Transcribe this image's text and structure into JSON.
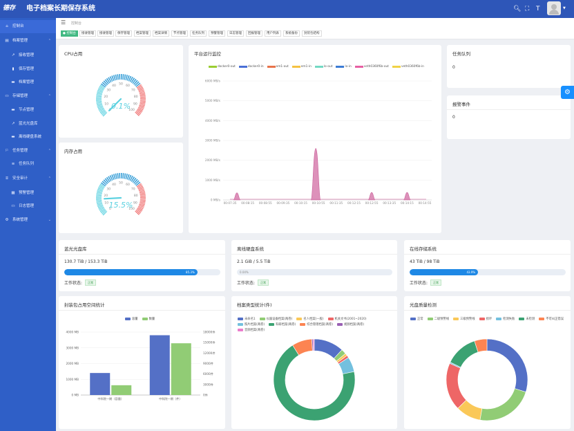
{
  "header": {
    "logo_text": "德存",
    "title": "电子档案长期保存系统"
  },
  "sidebar": {
    "items": [
      {
        "label": "控制台",
        "icon": "home-icon",
        "level": 0,
        "active": true
      },
      {
        "label": "档案管理",
        "icon": "archive-icon",
        "level": 0,
        "arrow": "⌃"
      },
      {
        "label": "接收管理",
        "icon": "external-link-icon",
        "level": 1
      },
      {
        "label": "保存管理",
        "icon": "bar-chart-icon",
        "level": 1
      },
      {
        "label": "档案管理",
        "icon": "document-icon",
        "level": 1
      },
      {
        "label": "存储管理",
        "icon": "storage-icon",
        "level": 0,
        "arrow": "⌃"
      },
      {
        "label": "节点管理",
        "icon": "document-icon",
        "level": 1
      },
      {
        "label": "蓝光光盘库",
        "icon": "external-link-icon",
        "level": 1
      },
      {
        "label": "离线硬盘系统",
        "icon": "document-icon",
        "level": 1
      },
      {
        "label": "任务管理",
        "icon": "task-icon",
        "level": 0,
        "arrow": "⌃"
      },
      {
        "label": "任务队列",
        "icon": "list-icon",
        "level": 1
      },
      {
        "label": "安全审计",
        "icon": "lock-icon",
        "level": 0,
        "arrow": "⌃"
      },
      {
        "label": "预警管理",
        "icon": "grid-icon",
        "level": 1
      },
      {
        "label": "日志管理",
        "icon": "message-icon",
        "level": 1
      },
      {
        "label": "系统管理",
        "icon": "settings-icon",
        "level": 0,
        "arrow": "⌄"
      }
    ]
  },
  "breadcrumb": "控制台",
  "tabs": [
    "● 控制台",
    "接收管理",
    "接收管理",
    "保存管理",
    "档案管理",
    "档案详情",
    "节点管理",
    "任务队列",
    "预警管理",
    "日志管理",
    "回报管理",
    "用户列表",
    "系统备份",
    "封装包结构"
  ],
  "cpu": {
    "title": "CPU占用",
    "value": "0.1%",
    "percent": 0.1
  },
  "memory": {
    "title": "内存占用",
    "value": "15.5%",
    "percent": 15.5
  },
  "gauge_ticks": [
    "0",
    "10",
    "20",
    "30",
    "40",
    "50",
    "60",
    "70",
    "80",
    "90",
    "100"
  ],
  "monitor": {
    "title": "平台运行监控",
    "legend": [
      {
        "name": "docker0-out",
        "color": "#9acd32"
      },
      {
        "name": "docker0-in",
        "color": "#4a6fd6"
      },
      {
        "name": "em1-out",
        "color": "#e8734a"
      },
      {
        "name": "em1-in",
        "color": "#f5c242"
      },
      {
        "name": "lo-out",
        "color": "#73d9c3"
      },
      {
        "name": "lo-in",
        "color": "#3b7bd4"
      },
      {
        "name": "veth0360f6b-out",
        "color": "#e75fa3"
      },
      {
        "name": "veth0360f6b-in",
        "color": "#f0d246"
      }
    ]
  },
  "task_queue": {
    "title": "任务队列",
    "value": "0"
  },
  "alarm": {
    "title": "报警事件",
    "value": "0"
  },
  "storage": [
    {
      "title": "蓝光光盘库",
      "usage": "130.7 TiB / 153.3 TiB",
      "percent": 85.3,
      "label": "85.3%",
      "status_label": "工作状态:",
      "status": "正常"
    },
    {
      "title": "离线硬盘系统",
      "usage": "2.1 GiB / 5.5 TiB",
      "percent": 0.04,
      "label": "0.04%",
      "status_label": "工作状态:",
      "status": "正常"
    },
    {
      "title": "在线存储系统",
      "usage": "43 TiB / 98 TiB",
      "percent": 43.9,
      "label": "43.9%",
      "status_label": "工作状态:",
      "status": "正常"
    }
  ],
  "package_chart": {
    "title": "封装包占用空间统计"
  },
  "category_chart": {
    "title": "档案类型统计(件)"
  },
  "quality_chart": {
    "title": "光盘质量检测"
  },
  "chart_data": [
    {
      "type": "line",
      "series": [
        "docker0-out",
        "docker0-in",
        "em1-out",
        "em1-in",
        "lo-out",
        "lo-in",
        "veth0360f6b-out",
        "veth0360f6b-in"
      ],
      "x": [
        "00:07:35",
        "00:08:15",
        "00:08:55",
        "00:09:35",
        "00:10:15",
        "00:10:55",
        "00:11:35",
        "00:12:15",
        "00:12:55",
        "00:13:35",
        "00:14:15",
        "00:14:55"
      ],
      "y_ticks": [
        "0 MB/s",
        "1000 MB/s",
        "2000 MB/s",
        "3000 MB/s",
        "4000 MB/s",
        "5000 MB/s",
        "6000 MB/s"
      ],
      "ylim": [
        0,
        6000
      ],
      "peaks": [
        {
          "x": "00:10:55",
          "y": 2600
        },
        {
          "x": "00:12:55",
          "y": 380
        },
        {
          "x": "00:14:15",
          "y": 380
        },
        {
          "x": "00:14:35",
          "y": 360
        }
      ]
    },
    {
      "type": "bar",
      "categories": [
        "中科院一期（容量）",
        "中科院一期（件）"
      ],
      "series": [
        {
          "name": "容量",
          "color": "#5470c6",
          "values": [
            1400,
            3800
          ]
        },
        {
          "name": "数量",
          "color": "#91cc75",
          "values": [
            2800,
            14800
          ]
        }
      ],
      "y_left_ticks": [
        "0 MB",
        "1000 MB",
        "2000 MB",
        "3000 MB",
        "4000 MB"
      ],
      "y_right_ticks": [
        "0件",
        "3000件",
        "6000件",
        "9000件",
        "12000件",
        "15000件",
        "18000件"
      ],
      "ylim_left": [
        0,
        4000
      ],
      "ylim_right": [
        0,
        18000
      ]
    },
    {
      "type": "pie",
      "donut": true,
      "slices": [
        {
          "name": "未命名1",
          "value": 12,
          "color": "#5470c6"
        },
        {
          "name": "仪器设备档案(两卷)",
          "value": 2,
          "color": "#91cc75"
        },
        {
          "name": "名人档案(一般)",
          "value": 1,
          "color": "#fac858"
        },
        {
          "name": "机关文书(2001~2020)",
          "value": 1,
          "color": "#ee6666"
        },
        {
          "name": "照片档案(两卷)",
          "value": 6,
          "color": "#73c0de"
        },
        {
          "name": "科研档案(两卷)",
          "value": 70,
          "color": "#3ba272"
        },
        {
          "name": "综合管理档案(两卷)",
          "value": 8,
          "color": "#fc8452"
        },
        {
          "name": "视频档案(两卷)",
          "value": 0.5,
          "color": "#9a60b4"
        },
        {
          "name": "音频档案(两卷)",
          "value": 0.5,
          "color": "#ea7ccc"
        }
      ]
    },
    {
      "type": "pie",
      "donut": true,
      "slices": [
        {
          "name": "正常",
          "value": 30,
          "color": "#5470c6"
        },
        {
          "name": "二级预警线",
          "value": 23,
          "color": "#91cc75"
        },
        {
          "name": "三级预警线",
          "value": 10,
          "color": "#fac858"
        },
        {
          "name": "损坏",
          "value": 19,
          "color": "#ee6666"
        },
        {
          "name": "检测失败",
          "value": 0.5,
          "color": "#73c0de"
        },
        {
          "name": "未检测",
          "value": 13,
          "color": "#3ba272"
        },
        {
          "name": "不可纠正错误",
          "value": 5,
          "color": "#fc8452"
        }
      ]
    }
  ]
}
